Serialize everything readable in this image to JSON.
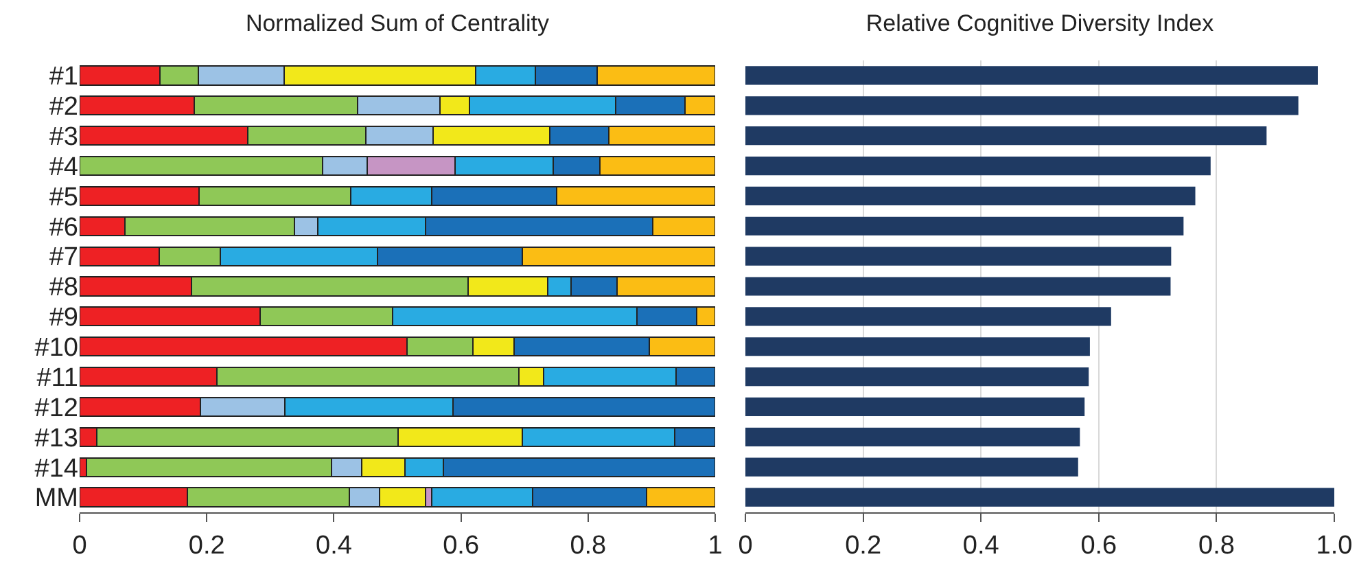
{
  "chart_data": [
    {
      "type": "bar",
      "title": "Normalized Sum of Centrality",
      "orientation": "horizontal",
      "stacked": true,
      "grid": false,
      "categories": [
        "#1",
        "#2",
        "#3",
        "#4",
        "#5",
        "#6",
        "#7",
        "#8",
        "#9",
        "#10",
        "#11",
        "#12",
        "#13",
        "#14",
        "MM"
      ],
      "series": [
        {
          "color": "#ee2124",
          "values": [
            0.126,
            0.18,
            0.265,
            0,
            0.188,
            0.071,
            0.125,
            0.176,
            0.284,
            0.515,
            0.216,
            0.19,
            0.027,
            0.011,
            0.17
          ]
        },
        {
          "color": "#8fc857",
          "values": [
            0.061,
            0.257,
            0.185,
            0.382,
            0.239,
            0.267,
            0.096,
            0.435,
            0.208,
            0.104,
            0.475,
            0,
            0.474,
            0.385,
            0.254
          ]
        },
        {
          "color": "#9cc2e5",
          "values": [
            0.135,
            0.13,
            0.106,
            0.07,
            0,
            0.037,
            0,
            0,
            0,
            0,
            0,
            0.133,
            0,
            0.048,
            0.048
          ]
        },
        {
          "color": "#f2e81a",
          "values": [
            0.301,
            0.046,
            0.184,
            0,
            0,
            0,
            0,
            0.126,
            0,
            0.065,
            0.039,
            0,
            0.195,
            0.068,
            0.072
          ]
        },
        {
          "color": "#c695c4",
          "values": [
            0,
            0,
            0,
            0.139,
            0,
            0,
            0,
            0,
            0,
            0,
            0,
            0,
            0,
            0,
            0.01
          ]
        },
        {
          "color": "#29abe2",
          "values": [
            0.094,
            0.23,
            0,
            0.154,
            0.127,
            0.169,
            0.248,
            0.036,
            0.385,
            0,
            0.208,
            0.264,
            0.24,
            0.06,
            0.159
          ]
        },
        {
          "color": "#1b70b8",
          "values": [
            0.097,
            0.11,
            0.093,
            0.074,
            0.197,
            0.358,
            0.228,
            0.073,
            0.094,
            0.212,
            0.062,
            0.413,
            0.064,
            0.428,
            0.179
          ]
        },
        {
          "color": "#fbbd14",
          "values": [
            0.186,
            0.047,
            0.167,
            0.181,
            0.249,
            0.098,
            0.303,
            0.154,
            0.029,
            0.104,
            0,
            0,
            0,
            0,
            0.108
          ]
        }
      ],
      "xlim": [
        0,
        1
      ],
      "xticks": [
        0,
        0.2,
        0.4,
        0.6,
        0.8,
        1
      ]
    },
    {
      "type": "bar",
      "title": "Relative Cognitive Diversity Index",
      "orientation": "horizontal",
      "grid": "x",
      "tick_labels": "x",
      "categories": [
        null,
        null,
        null,
        null,
        null,
        null,
        null,
        null,
        null,
        null,
        null,
        null,
        null,
        null,
        null
      ],
      "series": [
        {
          "color": "#1f3a63",
          "values": [
            0.972,
            0.939,
            0.885,
            0.79,
            0.764,
            0.744,
            0.723,
            0.722,
            0.621,
            0.585,
            0.583,
            0.576,
            0.568,
            0.565,
            1.0
          ]
        }
      ],
      "xlim": [
        0,
        1
      ],
      "xticks": [
        0,
        0.2,
        0.4,
        0.6,
        0.8,
        {
          "value": 1,
          "label": "1.0"
        }
      ]
    }
  ]
}
